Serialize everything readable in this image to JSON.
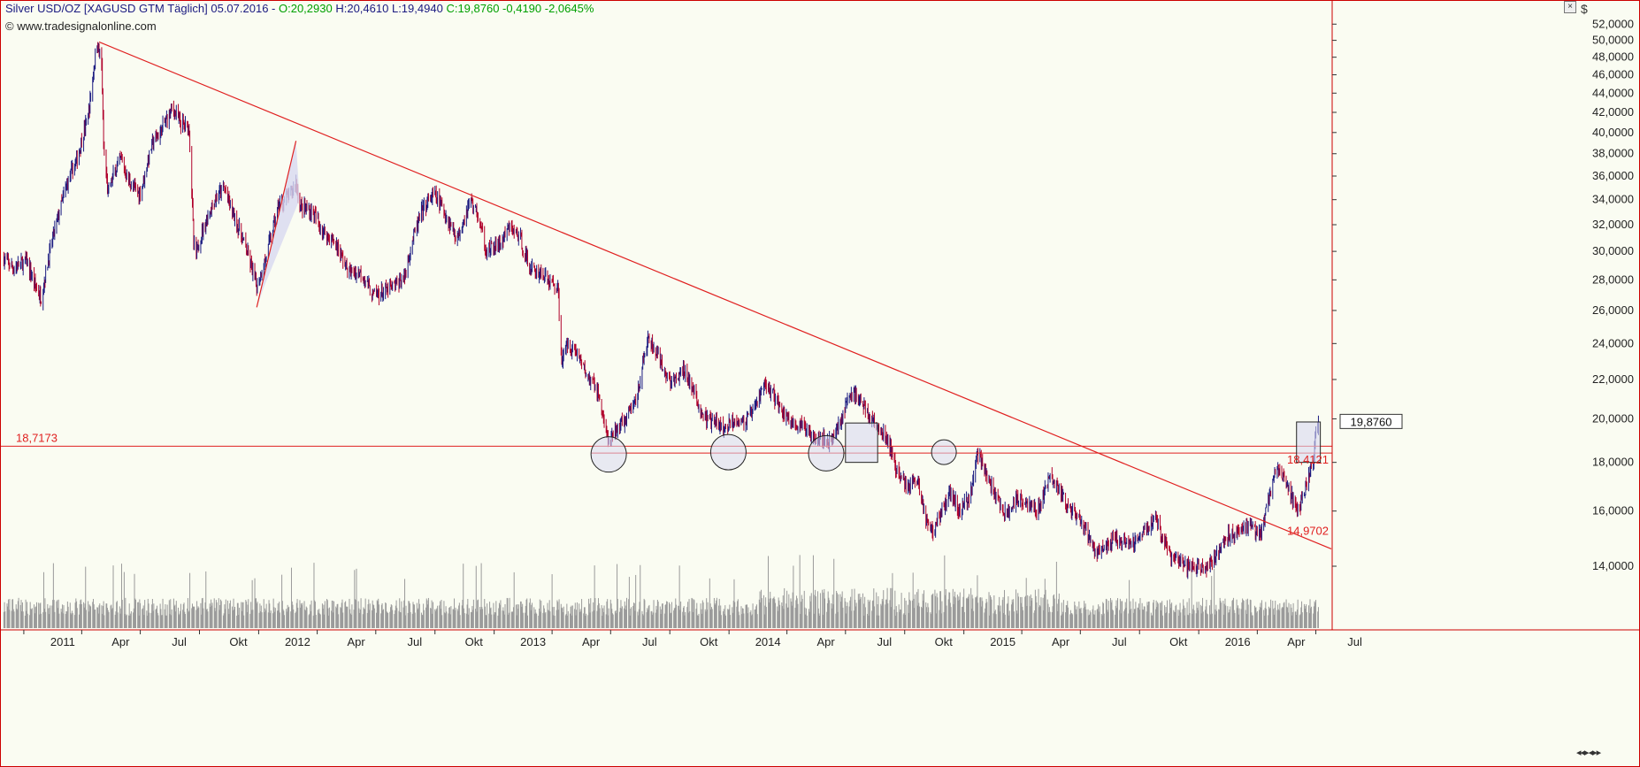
{
  "header": {
    "symbol": "Silver USD/OZ [XAGUSD GTM  Täglich] 05.07.2016 -",
    "open": "O:20,2930",
    "high": "H:20,4610",
    "low": "L:19,4940",
    "close_info": "C:19,8760 -0,4190 -2,0645%",
    "source": "© www.tradesignalonline.com",
    "currency": "$",
    "close_button": "×"
  },
  "colors": {
    "background": "#fafcf2",
    "candle_up": "#1a1a80",
    "candle_down": "#b0002a",
    "trendline": "#e02020",
    "volume": "#9a9a9a",
    "highlight_fill": "#d8d8f0",
    "current_price_label_bg": "#ffffff"
  },
  "chart_data": {
    "type": "candlestick",
    "instrument": "Silver USD/OZ",
    "timeframe": "Täglich",
    "ylim": [
      12.0,
      53.5
    ],
    "yticks": [
      "14,0000",
      "16,0000",
      "18,0000",
      "20,0000",
      "22,0000",
      "24,0000",
      "26,0000",
      "28,0000",
      "30,0000",
      "32,0000",
      "34,0000",
      "36,0000",
      "38,0000",
      "40,0000",
      "42,0000",
      "44,0000",
      "46,0000",
      "48,0000",
      "50,0000",
      "52,0000"
    ],
    "xticks": [
      "2011",
      "Apr",
      "Jul",
      "Okt",
      "2012",
      "Apr",
      "Jul",
      "Okt",
      "2013",
      "Apr",
      "Jul",
      "Okt",
      "2014",
      "Apr",
      "Jul",
      "Okt",
      "2015",
      "Apr",
      "Jul",
      "Okt",
      "2016",
      "Apr",
      "Jul"
    ],
    "anchors": [
      [
        "2010-12-01",
        29.5
      ],
      [
        "2010-12-15",
        28.8
      ],
      [
        "2011-01-05",
        29.3
      ],
      [
        "2011-01-20",
        27.5
      ],
      [
        "2011-01-28",
        26.8
      ],
      [
        "2011-02-15",
        31.0
      ],
      [
        "2011-03-10",
        35.5
      ],
      [
        "2011-03-25",
        37.5
      ],
      [
        "2011-04-12",
        42.0
      ],
      [
        "2011-04-25",
        49.8
      ],
      [
        "2011-05-02",
        47.0
      ],
      [
        "2011-05-05",
        38.5
      ],
      [
        "2011-05-12",
        34.5
      ],
      [
        "2011-05-20",
        36.0
      ],
      [
        "2011-06-01",
        37.5
      ],
      [
        "2011-06-10",
        36.0
      ],
      [
        "2011-06-20",
        35.0
      ],
      [
        "2011-07-01",
        34.5
      ],
      [
        "2011-07-20",
        39.0
      ],
      [
        "2011-08-01",
        40.0
      ],
      [
        "2011-08-20",
        42.5
      ],
      [
        "2011-09-01",
        41.0
      ],
      [
        "2011-09-15",
        40.5
      ],
      [
        "2011-09-22",
        30.5
      ],
      [
        "2011-09-26",
        29.8
      ],
      [
        "2011-10-05",
        31.5
      ],
      [
        "2011-10-25",
        34.0
      ],
      [
        "2011-11-08",
        35.0
      ],
      [
        "2011-11-25",
        32.5
      ],
      [
        "2011-12-10",
        30.5
      ],
      [
        "2011-12-20",
        29.0
      ],
      [
        "2011-12-29",
        27.5
      ],
      [
        "2012-01-12",
        29.5
      ],
      [
        "2012-02-01",
        33.5
      ],
      [
        "2012-02-20",
        34.5
      ],
      [
        "2012-02-28",
        35.5
      ],
      [
        "2012-03-05",
        33.5
      ],
      [
        "2012-03-25",
        33.0
      ],
      [
        "2012-04-10",
        31.5
      ],
      [
        "2012-05-01",
        30.5
      ],
      [
        "2012-05-20",
        28.5
      ],
      [
        "2012-06-10",
        28.5
      ],
      [
        "2012-06-25",
        27.0
      ],
      [
        "2012-07-15",
        27.2
      ],
      [
        "2012-07-30",
        27.6
      ],
      [
        "2012-08-15",
        28.2
      ],
      [
        "2012-08-25",
        30.5
      ],
      [
        "2012-09-10",
        33.0
      ],
      [
        "2012-09-30",
        34.5
      ],
      [
        "2012-10-15",
        33.0
      ],
      [
        "2012-11-05",
        31.0
      ],
      [
        "2012-11-25",
        34.0
      ],
      [
        "2012-12-05",
        33.0
      ],
      [
        "2012-12-20",
        30.0
      ],
      [
        "2013-01-10",
        30.5
      ],
      [
        "2013-01-25",
        31.8
      ],
      [
        "2013-02-10",
        31.0
      ],
      [
        "2013-02-25",
        28.8
      ],
      [
        "2013-03-15",
        28.5
      ],
      [
        "2013-03-30",
        27.8
      ],
      [
        "2013-04-10",
        27.5
      ],
      [
        "2013-04-16",
        23.0
      ],
      [
        "2013-04-25",
        24.0
      ],
      [
        "2013-05-10",
        23.5
      ],
      [
        "2013-05-25",
        22.2
      ],
      [
        "2013-06-10",
        21.5
      ],
      [
        "2013-06-20",
        20.0
      ],
      [
        "2013-06-28",
        18.8
      ],
      [
        "2013-07-10",
        19.5
      ],
      [
        "2013-07-25",
        20.0
      ],
      [
        "2013-08-10",
        21.0
      ],
      [
        "2013-08-28",
        24.2
      ],
      [
        "2013-09-10",
        23.5
      ],
      [
        "2013-09-20",
        22.5
      ],
      [
        "2013-10-05",
        21.8
      ],
      [
        "2013-10-25",
        22.5
      ],
      [
        "2013-11-10",
        21.0
      ],
      [
        "2013-11-25",
        20.0
      ],
      [
        "2013-12-10",
        19.8
      ],
      [
        "2013-12-25",
        19.5
      ],
      [
        "2014-01-10",
        20.0
      ],
      [
        "2014-01-25",
        19.8
      ],
      [
        "2014-02-10",
        20.5
      ],
      [
        "2014-02-25",
        21.8
      ],
      [
        "2014-03-10",
        21.3
      ],
      [
        "2014-03-25",
        20.3
      ],
      [
        "2014-04-10",
        19.8
      ],
      [
        "2014-04-25",
        19.6
      ],
      [
        "2014-05-10",
        19.3
      ],
      [
        "2014-05-25",
        19.1
      ],
      [
        "2014-06-05",
        18.9
      ],
      [
        "2014-06-20",
        19.6
      ],
      [
        "2014-07-05",
        21.0
      ],
      [
        "2014-07-15",
        21.3
      ],
      [
        "2014-08-01",
        20.5
      ],
      [
        "2014-08-20",
        19.5
      ],
      [
        "2014-09-05",
        19.0
      ],
      [
        "2014-09-20",
        17.5
      ],
      [
        "2014-10-05",
        17.0
      ],
      [
        "2014-10-20",
        17.3
      ],
      [
        "2014-11-05",
        15.5
      ],
      [
        "2014-11-15",
        15.3
      ],
      [
        "2014-11-25",
        15.8
      ],
      [
        "2014-12-10",
        16.8
      ],
      [
        "2014-12-25",
        16.0
      ],
      [
        "2015-01-10",
        16.5
      ],
      [
        "2015-01-22",
        18.5
      ],
      [
        "2015-02-05",
        17.5
      ],
      [
        "2015-02-20",
        16.5
      ],
      [
        "2015-03-10",
        15.8
      ],
      [
        "2015-03-25",
        16.6
      ],
      [
        "2015-04-10",
        16.3
      ],
      [
        "2015-04-25",
        16.0
      ],
      [
        "2015-05-15",
        17.4
      ],
      [
        "2015-05-30",
        16.8
      ],
      [
        "2015-06-15",
        16.0
      ],
      [
        "2015-06-30",
        15.6
      ],
      [
        "2015-07-15",
        15.0
      ],
      [
        "2015-07-25",
        14.5
      ],
      [
        "2015-08-10",
        14.6
      ],
      [
        "2015-08-25",
        15.0
      ],
      [
        "2015-09-10",
        14.8
      ],
      [
        "2015-09-25",
        14.9
      ],
      [
        "2015-10-10",
        15.3
      ],
      [
        "2015-10-25",
        15.8
      ],
      [
        "2015-11-05",
        15.0
      ],
      [
        "2015-11-20",
        14.3
      ],
      [
        "2015-12-10",
        14.0
      ],
      [
        "2015-12-25",
        13.9
      ],
      [
        "2016-01-10",
        14.0
      ],
      [
        "2016-01-25",
        14.2
      ],
      [
        "2016-02-10",
        15.0
      ],
      [
        "2016-02-25",
        15.2
      ],
      [
        "2016-03-10",
        15.5
      ],
      [
        "2016-03-25",
        15.3
      ],
      [
        "2016-04-05",
        15.1
      ],
      [
        "2016-04-20",
        16.5
      ],
      [
        "2016-05-01",
        17.8
      ],
      [
        "2016-05-15",
        17.2
      ],
      [
        "2016-05-25",
        16.5
      ],
      [
        "2016-06-01",
        16.0
      ],
      [
        "2016-06-10",
        16.5
      ],
      [
        "2016-06-20",
        17.3
      ],
      [
        "2016-06-28",
        18.1
      ],
      [
        "2016-07-01",
        19.5
      ],
      [
        "2016-07-05",
        19.88
      ]
    ],
    "trendline_main": [
      [
        "2011-04-28",
        49.8
      ],
      [
        "2016-07-25",
        14.6
      ]
    ],
    "trendline_steep": [
      [
        "2011-12-29",
        26.2
      ],
      [
        "2012-02-28",
        39.2
      ]
    ],
    "hline_upper": 18.7173,
    "hline_lower": 18.4121,
    "circles": [
      [
        "2013-06-28",
        18.35
      ],
      [
        "2013-12-31",
        18.45
      ],
      [
        "2014-06-01",
        18.4
      ],
      [
        "2014-12-01",
        18.45
      ]
    ],
    "boxes": [
      [
        [
          "2014-07-01",
          18.0
        ],
        [
          "2014-08-20",
          19.8
        ]
      ],
      [
        [
          "2016-06-01",
          18.0
        ],
        [
          "2016-07-08",
          19.85
        ]
      ]
    ],
    "labels": {
      "hline_upper_label": "18,7173",
      "hline_lower_label": "18,4121",
      "trendline_end_label": "14,9702",
      "current_price": "19,8760"
    }
  }
}
